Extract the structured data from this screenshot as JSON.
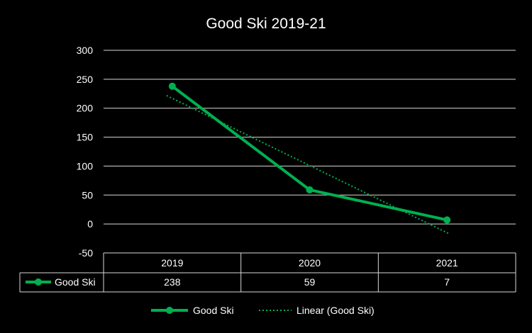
{
  "chart_data": {
    "type": "line",
    "title": "Good Ski 2019-21",
    "categories": [
      "2019",
      "2020",
      "2021"
    ],
    "series": [
      {
        "name": "Good Ski",
        "values": [
          238,
          59,
          7
        ],
        "color": "#00b050"
      }
    ],
    "trendline": {
      "name": "Linear (Good Ski)",
      "type": "linear",
      "values": [
        217,
        101,
        -15
      ],
      "color": "#00b050"
    },
    "y_ticks": [
      "300",
      "250",
      "200",
      "150",
      "100",
      "50",
      "0",
      "-50"
    ],
    "ylim": [
      -50,
      300
    ],
    "grid": true,
    "data_table": true,
    "legend_position": "bottom",
    "background": "#000000"
  }
}
